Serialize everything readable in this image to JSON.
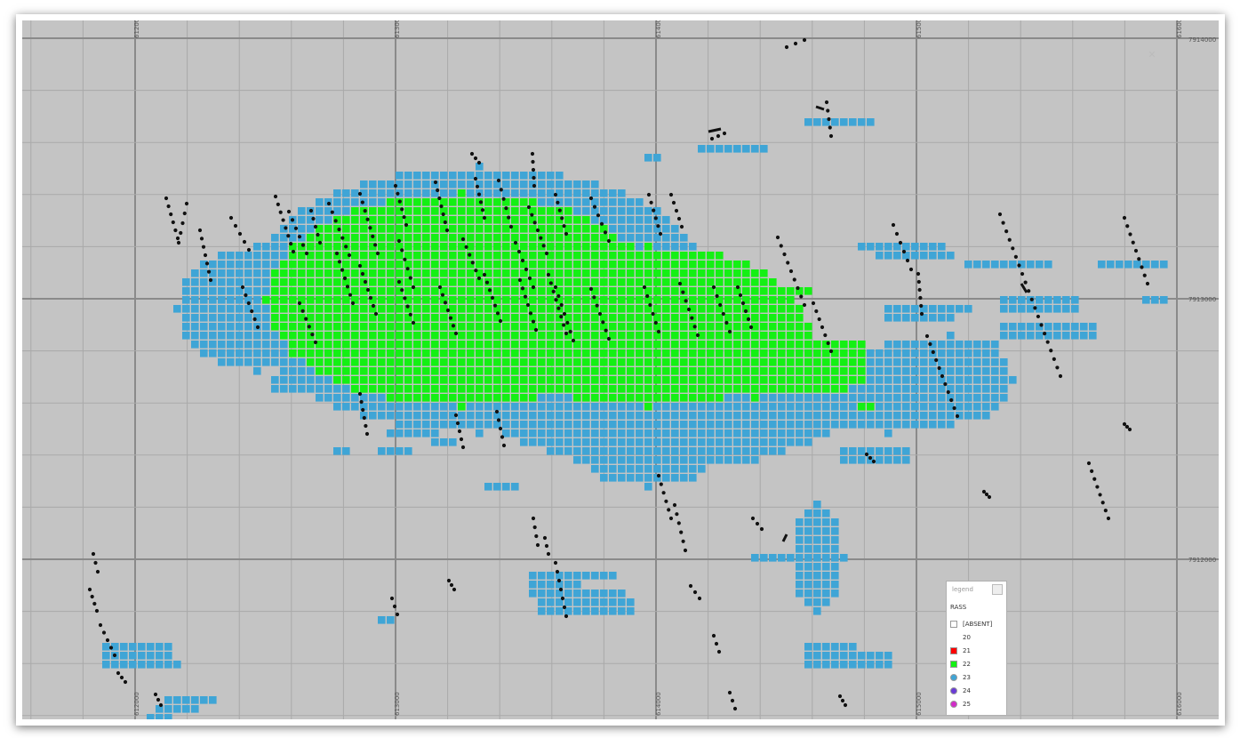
{
  "map": {
    "x_tick_labels": [
      "612000",
      "613000",
      "614000",
      "615000",
      "616000"
    ],
    "y_tick_labels": [
      "7914000",
      "7913000",
      "7912000"
    ],
    "close_glyph": "✕",
    "colors": {
      "background": "#c4c4c4",
      "block_green": "#14f014",
      "block_blue": "#3fa5d6",
      "drillhole": "#111111"
    }
  },
  "legend": {
    "title": "legend",
    "field": "RASS",
    "items": [
      {
        "label": "[ABSENT]",
        "color": "#ffffff",
        "swatch": "box"
      },
      {
        "label": "20",
        "color": "",
        "swatch": "none"
      },
      {
        "label": "21",
        "color": "#ff0000",
        "swatch": "box"
      },
      {
        "label": "22",
        "color": "#14f014",
        "swatch": "box"
      },
      {
        "label": "23",
        "color": "#3fa5d6",
        "swatch": "dot"
      },
      {
        "label": "24",
        "color": "#6a3bd6",
        "swatch": "dot"
      },
      {
        "label": "25",
        "color": "#d22cc8",
        "swatch": "dot"
      }
    ]
  }
}
